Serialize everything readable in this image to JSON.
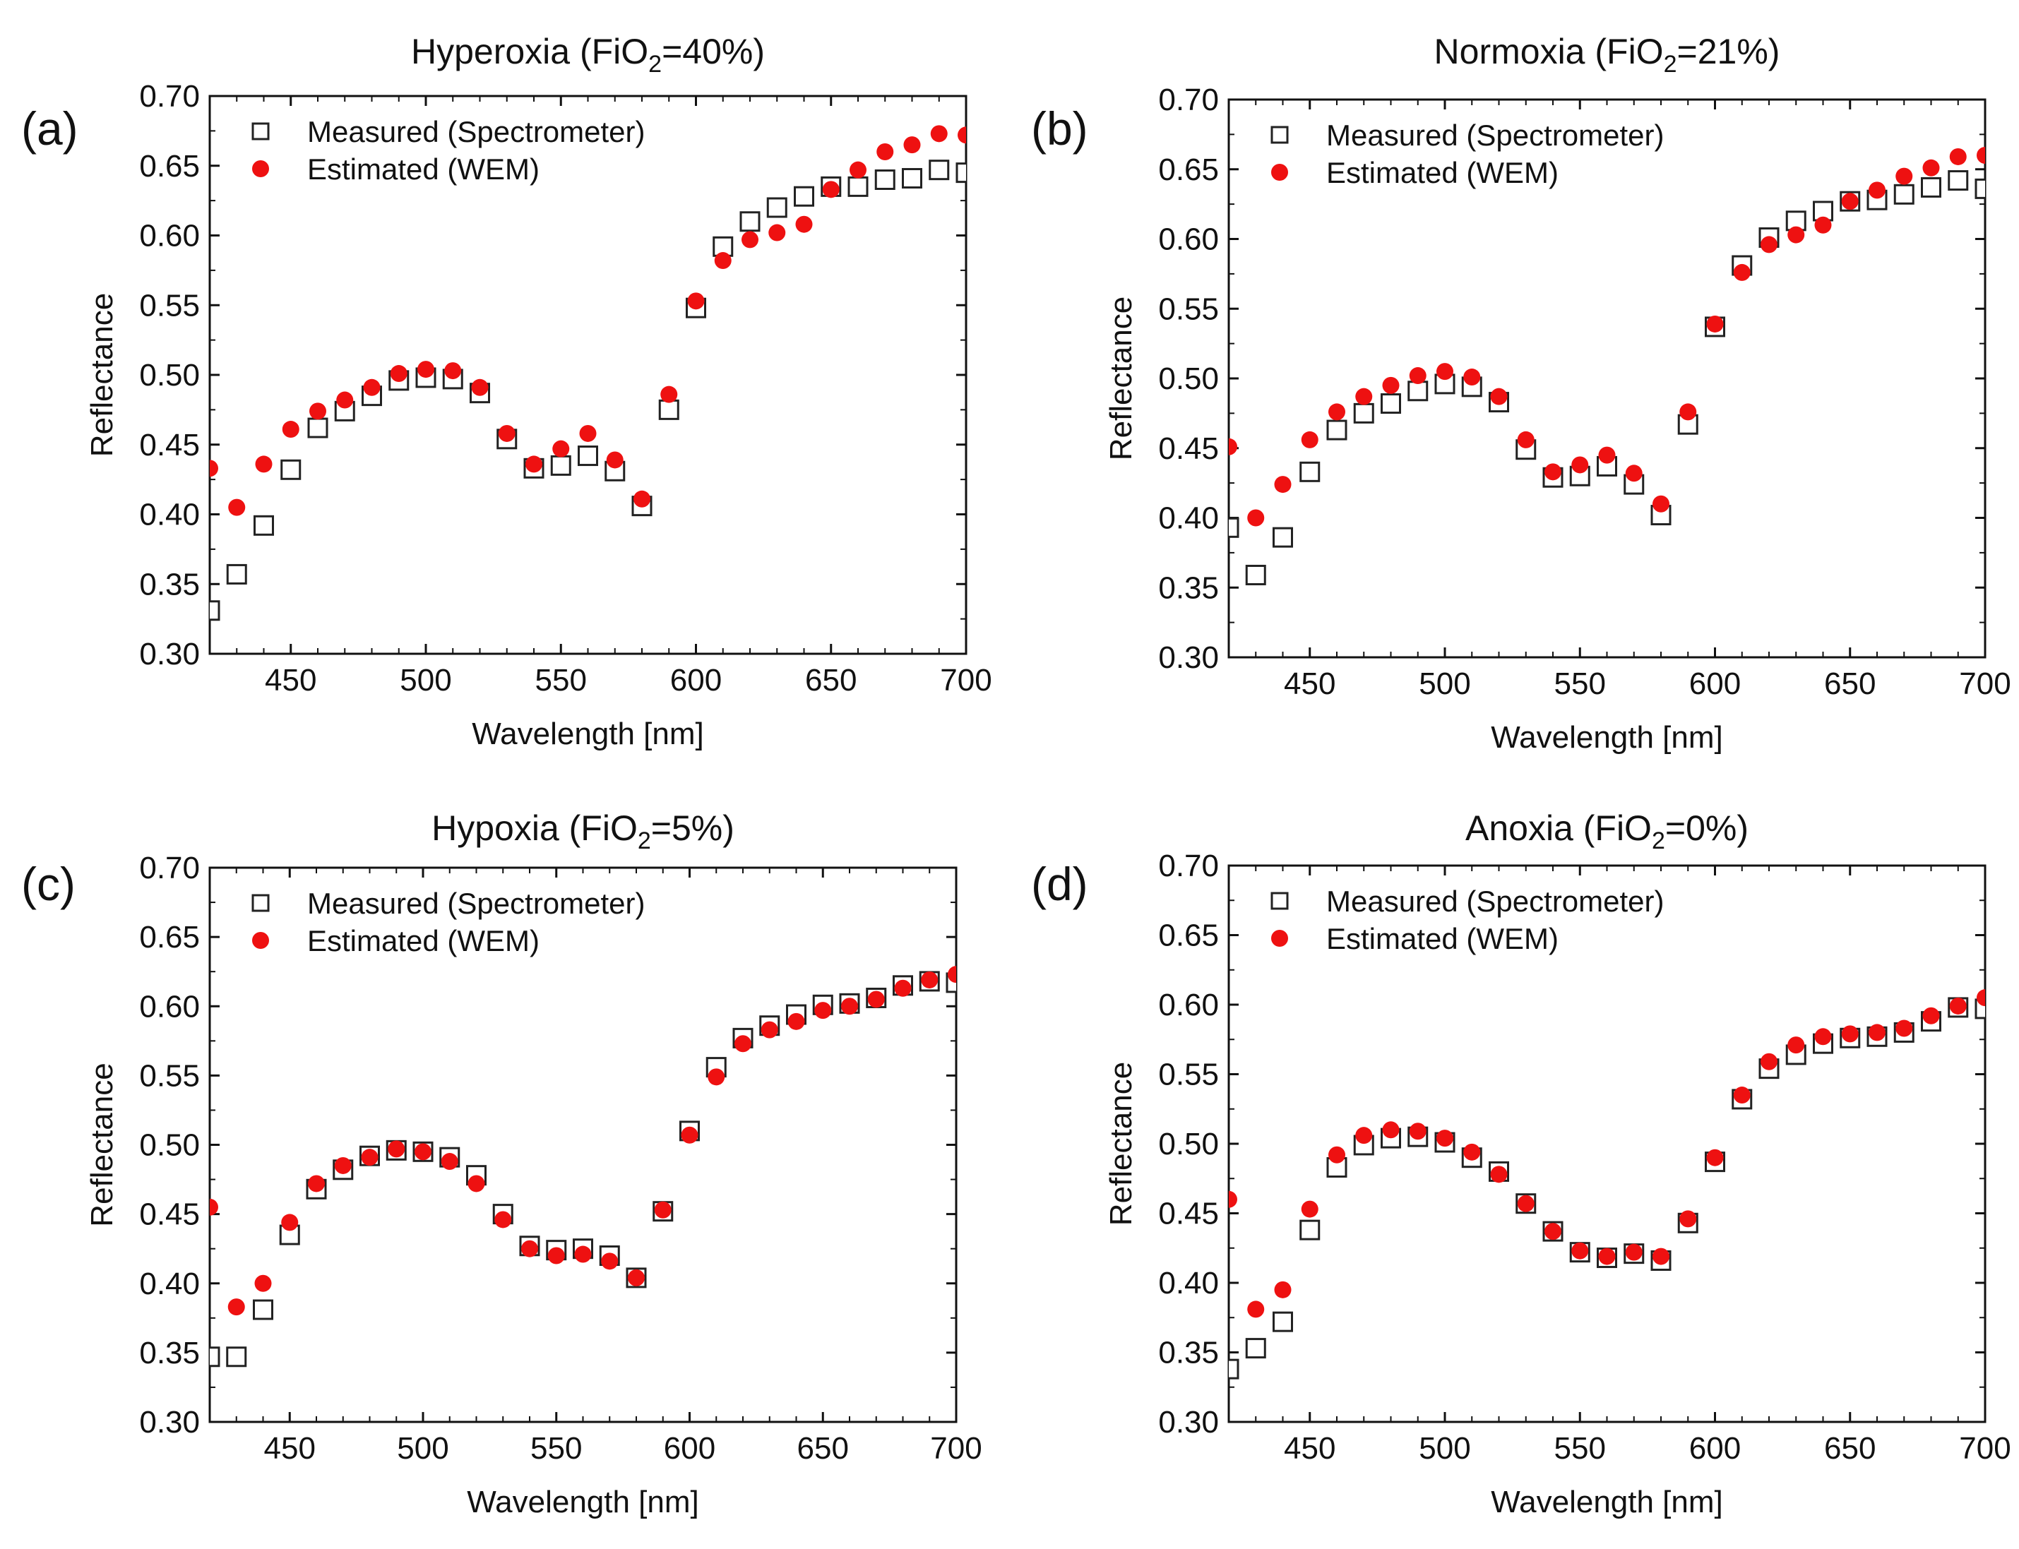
{
  "figure": {
    "legend_measured": "Measured (Spectrometer)",
    "legend_estimated": "Estimated (WEM)",
    "colors": {
      "measured": "#222222",
      "estimated": "#ee1111",
      "axis": "#111111"
    }
  },
  "chart_data": [
    {
      "type": "scatter",
      "panel_label": "(a)",
      "title": "Hyperoxia (FiO",
      "title_sub": "2",
      "title_end": "=40%)",
      "xlabel": "Wavelength [nm]",
      "ylabel": "Reflectance",
      "xlim": [
        420,
        700
      ],
      "ylim": [
        0.3,
        0.7
      ],
      "xticks": [
        "450",
        "500",
        "550",
        "600",
        "650",
        "700"
      ],
      "yticks": [
        "0.30",
        "0.35",
        "0.40",
        "0.45",
        "0.50",
        "0.55",
        "0.60",
        "0.65",
        "0.70"
      ],
      "legend_position": "top-left",
      "x": [
        420,
        430,
        440,
        450,
        460,
        470,
        480,
        490,
        500,
        510,
        520,
        530,
        540,
        550,
        560,
        570,
        580,
        590,
        600,
        610,
        620,
        630,
        640,
        650,
        660,
        670,
        680,
        690,
        700
      ],
      "series": [
        {
          "name": "Measured (Spectrometer)",
          "marker": "open-square",
          "values": [
            0.331,
            0.357,
            0.392,
            0.432,
            0.462,
            0.474,
            0.485,
            0.496,
            0.498,
            0.497,
            0.487,
            0.454,
            0.433,
            0.435,
            0.442,
            0.431,
            0.406,
            0.475,
            0.548,
            0.592,
            0.61,
            0.62,
            0.628,
            0.635,
            0.635,
            0.64,
            0.641,
            0.647,
            0.645
          ]
        },
        {
          "name": "Estimated (WEM)",
          "marker": "filled-circle",
          "values": [
            0.433,
            0.405,
            0.436,
            0.461,
            0.474,
            0.482,
            0.491,
            0.501,
            0.504,
            0.503,
            0.491,
            0.458,
            0.436,
            0.447,
            0.458,
            0.439,
            0.411,
            0.486,
            0.553,
            0.582,
            0.597,
            0.602,
            0.608,
            0.633,
            0.647,
            0.66,
            0.665,
            0.673,
            0.672
          ]
        }
      ]
    },
    {
      "type": "scatter",
      "panel_label": "(b)",
      "title": "Normoxia (FiO",
      "title_sub": "2",
      "title_end": "=21%)",
      "xlabel": "Wavelength [nm]",
      "ylabel": "Reflectance",
      "xlim": [
        420,
        700
      ],
      "ylim": [
        0.3,
        0.7
      ],
      "xticks": [
        "450",
        "500",
        "550",
        "600",
        "650",
        "700"
      ],
      "yticks": [
        "0.30",
        "0.35",
        "0.40",
        "0.45",
        "0.50",
        "0.55",
        "0.60",
        "0.65",
        "0.70"
      ],
      "legend_position": "top-left",
      "x": [
        420,
        430,
        440,
        450,
        460,
        470,
        480,
        490,
        500,
        510,
        520,
        530,
        540,
        550,
        560,
        570,
        580,
        590,
        600,
        610,
        620,
        630,
        640,
        650,
        660,
        670,
        680,
        690,
        700
      ],
      "series": [
        {
          "name": "Measured (Spectrometer)",
          "marker": "open-square",
          "values": [
            0.393,
            0.359,
            0.386,
            0.433,
            0.463,
            0.475,
            0.482,
            0.491,
            0.496,
            0.494,
            0.483,
            0.449,
            0.429,
            0.43,
            0.437,
            0.424,
            0.402,
            0.467,
            0.537,
            0.581,
            0.601,
            0.613,
            0.62,
            0.627,
            0.628,
            0.632,
            0.637,
            0.642,
            0.636
          ]
        },
        {
          "name": "Estimated (WEM)",
          "marker": "filled-circle",
          "values": [
            0.451,
            0.4,
            0.424,
            0.456,
            0.476,
            0.487,
            0.495,
            0.502,
            0.505,
            0.501,
            0.487,
            0.456,
            0.433,
            0.438,
            0.445,
            0.432,
            0.41,
            0.476,
            0.539,
            0.576,
            0.596,
            0.603,
            0.61,
            0.627,
            0.635,
            0.645,
            0.651,
            0.659,
            0.66
          ]
        }
      ]
    },
    {
      "type": "scatter",
      "panel_label": "(c)",
      "title": "Hypoxia (FiO",
      "title_sub": "2",
      "title_end": "=5%)",
      "xlabel": "Wavelength [nm]",
      "ylabel": "Reflectance",
      "xlim": [
        420,
        700
      ],
      "ylim": [
        0.3,
        0.7
      ],
      "xticks": [
        "450",
        "500",
        "550",
        "600",
        "650",
        "700"
      ],
      "yticks": [
        "0.30",
        "0.35",
        "0.40",
        "0.45",
        "0.50",
        "0.55",
        "0.60",
        "0.65",
        "0.70"
      ],
      "legend_position": "top-left",
      "x": [
        420,
        430,
        440,
        450,
        460,
        470,
        480,
        490,
        500,
        510,
        520,
        530,
        540,
        550,
        560,
        570,
        580,
        590,
        600,
        610,
        620,
        630,
        640,
        650,
        660,
        670,
        680,
        690,
        700
      ],
      "series": [
        {
          "name": "Measured (Spectrometer)",
          "marker": "open-square",
          "values": [
            0.347,
            0.347,
            0.381,
            0.435,
            0.468,
            0.482,
            0.492,
            0.496,
            0.495,
            0.491,
            0.478,
            0.45,
            0.427,
            0.424,
            0.425,
            0.42,
            0.404,
            0.452,
            0.51,
            0.556,
            0.577,
            0.586,
            0.594,
            0.601,
            0.602,
            0.606,
            0.615,
            0.618,
            0.617
          ]
        },
        {
          "name": "Estimated (WEM)",
          "marker": "filled-circle",
          "values": [
            0.455,
            0.383,
            0.4,
            0.444,
            0.472,
            0.485,
            0.491,
            0.497,
            0.495,
            0.488,
            0.472,
            0.446,
            0.425,
            0.42,
            0.421,
            0.416,
            0.404,
            0.453,
            0.507,
            0.549,
            0.573,
            0.583,
            0.589,
            0.597,
            0.6,
            0.605,
            0.613,
            0.619,
            0.623
          ]
        }
      ]
    },
    {
      "type": "scatter",
      "panel_label": "(d)",
      "title": "Anoxia (FiO",
      "title_sub": "2",
      "title_end": "=0%)",
      "xlabel": "Wavelength [nm]",
      "ylabel": "Reflectance",
      "xlim": [
        420,
        700
      ],
      "ylim": [
        0.3,
        0.7
      ],
      "xticks": [
        "450",
        "500",
        "550",
        "600",
        "650",
        "700"
      ],
      "yticks": [
        "0.30",
        "0.35",
        "0.40",
        "0.45",
        "0.50",
        "0.55",
        "0.60",
        "0.65",
        "0.70"
      ],
      "legend_position": "top-left",
      "x": [
        420,
        430,
        440,
        450,
        460,
        470,
        480,
        490,
        500,
        510,
        520,
        530,
        540,
        550,
        560,
        570,
        580,
        590,
        600,
        610,
        620,
        630,
        640,
        650,
        660,
        670,
        680,
        690,
        700
      ],
      "series": [
        {
          "name": "Measured (Spectrometer)",
          "marker": "open-square",
          "values": [
            0.338,
            0.353,
            0.372,
            0.438,
            0.483,
            0.499,
            0.504,
            0.505,
            0.501,
            0.49,
            0.48,
            0.457,
            0.437,
            0.422,
            0.418,
            0.421,
            0.416,
            0.443,
            0.487,
            0.532,
            0.554,
            0.564,
            0.572,
            0.576,
            0.577,
            0.58,
            0.588,
            0.598,
            0.597
          ]
        },
        {
          "name": "Estimated (WEM)",
          "marker": "filled-circle",
          "values": [
            0.46,
            0.381,
            0.395,
            0.453,
            0.492,
            0.506,
            0.51,
            0.509,
            0.504,
            0.494,
            0.478,
            0.457,
            0.437,
            0.423,
            0.419,
            0.422,
            0.419,
            0.446,
            0.49,
            0.535,
            0.559,
            0.571,
            0.577,
            0.579,
            0.58,
            0.583,
            0.592,
            0.599,
            0.605
          ]
        }
      ]
    }
  ]
}
